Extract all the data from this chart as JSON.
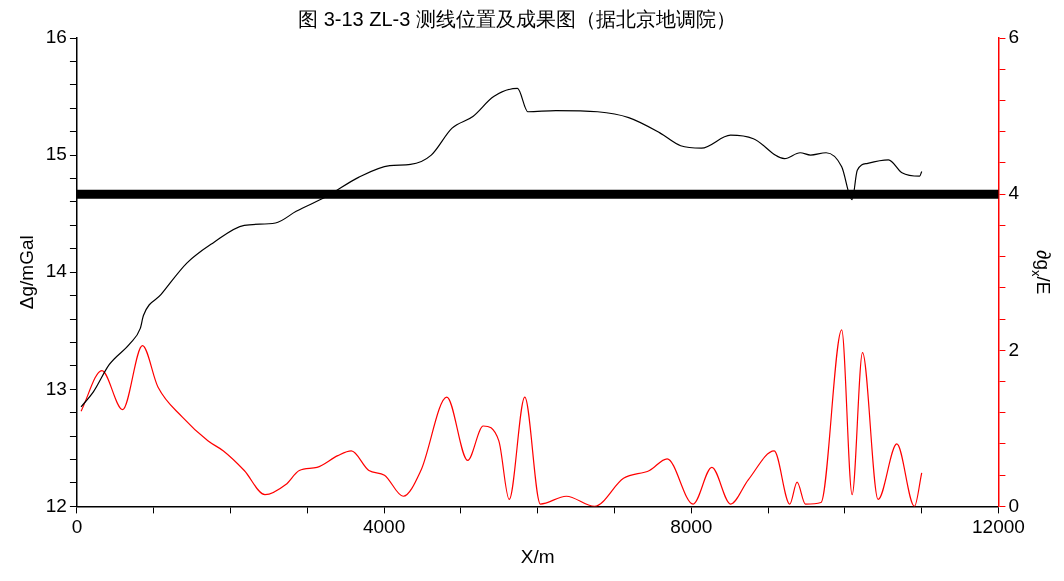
{
  "chart_data": {
    "type": "line",
    "title": "图 3-13 ZL-3 测线位置及成果图（据北京地调院）",
    "xlabel": "X/m",
    "ylabel": "Δg/mGal",
    "y2label": "∂g$_{x}$/E",
    "xlim": [
      0,
      12000
    ],
    "xticks": [
      0,
      {
        "value": 1000,
        "label": null
      },
      {
        "value": 2000,
        "label": null
      },
      {
        "value": 3000,
        "label": null
      },
      4000,
      {
        "value": 5000,
        "label": null
      },
      {
        "value": 6000,
        "label": null
      },
      {
        "value": 7000,
        "label": null
      },
      8000,
      {
        "value": 9000,
        "label": null
      },
      {
        "value": 10000,
        "label": null
      },
      {
        "value": 11000,
        "label": null
      },
      12000
    ],
    "ylim": [
      12,
      16
    ],
    "yticks": [
      12,
      {
        "value": 12.2,
        "label": null
      },
      {
        "value": 12.4,
        "label": null
      },
      {
        "value": 12.6,
        "label": null
      },
      {
        "value": 12.8,
        "label": null
      },
      13,
      {
        "value": 13.2,
        "label": null
      },
      {
        "value": 13.4,
        "label": null
      },
      {
        "value": 13.6,
        "label": null
      },
      {
        "value": 13.8,
        "label": null
      },
      14,
      {
        "value": 14.2,
        "label": null
      },
      {
        "value": 14.4,
        "label": null
      },
      {
        "value": 14.6,
        "label": null
      },
      {
        "value": 14.8,
        "label": null
      },
      15,
      {
        "value": 15.2,
        "label": null
      },
      {
        "value": 15.4,
        "label": null
      },
      {
        "value": 15.6,
        "label": null
      },
      {
        "value": 15.8,
        "label": null
      },
      16
    ],
    "y2lim": [
      0,
      6
    ],
    "y2ticks": [
      0,
      {
        "value": 0.4,
        "label": null
      },
      {
        "value": 0.8,
        "label": null
      },
      {
        "value": 1.2,
        "label": null
      },
      {
        "value": 1.6,
        "label": null
      },
      2,
      {
        "value": 2.4,
        "label": null
      },
      {
        "value": 2.8,
        "label": null
      },
      {
        "value": 3.2,
        "label": null
      },
      {
        "value": 3.6,
        "label": null
      },
      4,
      {
        "value": 4.4,
        "label": null
      },
      {
        "value": 4.8,
        "label": null
      },
      {
        "value": 5.2,
        "label": null
      },
      {
        "value": 5.6,
        "label": null
      },
      6
    ],
    "grid": false,
    "legend": false,
    "marker": "none",
    "line_style": "solid",
    "ref_lines": [
      {
        "axis": "y2",
        "value": 4,
        "color": "#000000"
      }
    ],
    "series": [
      {
        "color": "#000000",
        "x": [
          54,
          216,
          420,
          690,
          825,
          866,
          1096,
          1434,
          1773,
          2179,
          2585,
          2855,
          3261,
          3667,
          4073,
          4344,
          4614,
          4885,
          5156,
          5427,
          5737,
          5873,
          6238,
          6780,
          7185,
          7591,
          7862,
          8133,
          8512,
          8809,
          9215,
          9418,
          9553,
          9756,
          9959,
          10095,
          10162,
          10298,
          10568,
          10744,
          10974,
          11001
        ],
        "values": [
          12.85,
          12.98,
          13.21,
          13.39,
          13.52,
          13.63,
          13.81,
          14.08,
          14.25,
          14.4,
          14.42,
          14.52,
          14.65,
          14.81,
          14.91,
          14.92,
          15.0,
          15.23,
          15.33,
          15.5,
          15.57,
          15.37,
          15.38,
          15.37,
          15.32,
          15.19,
          15.08,
          15.06,
          15.17,
          15.14,
          14.97,
          15.02,
          15.0,
          15.02,
          14.9,
          14.62,
          14.87,
          14.93,
          14.96,
          14.85,
          14.82,
          14.86
        ]
      },
      {
        "color": "#ff0000",
        "axis": "y2",
        "x": [
          54,
          325,
          595,
          853,
          1055,
          1367,
          1705,
          1908,
          2179,
          2449,
          2720,
          2896,
          3126,
          3397,
          3573,
          3802,
          4005,
          4249,
          4479,
          4817,
          5088,
          5291,
          5494,
          5629,
          5832,
          6035,
          6373,
          6739,
          7118,
          7456,
          7686,
          8024,
          8268,
          8512,
          8742,
          9080,
          9283,
          9378,
          9486,
          9689,
          9959,
          10095,
          10230,
          10433,
          10677,
          10906,
          11001
        ],
        "values": [
          1.22,
          1.74,
          1.24,
          2.06,
          1.53,
          1.15,
          0.84,
          0.71,
          0.46,
          0.15,
          0.28,
          0.46,
          0.5,
          0.65,
          0.71,
          0.46,
          0.4,
          0.13,
          0.46,
          1.4,
          0.59,
          1.03,
          0.84,
          0.09,
          1.4,
          0.03,
          0.13,
          0.0,
          0.36,
          0.46,
          0.61,
          0.03,
          0.5,
          0.03,
          0.34,
          0.71,
          0.03,
          0.31,
          0.03,
          0.05,
          2.26,
          0.15,
          1.97,
          0.09,
          0.8,
          0.0,
          0.43
        ]
      }
    ]
  }
}
